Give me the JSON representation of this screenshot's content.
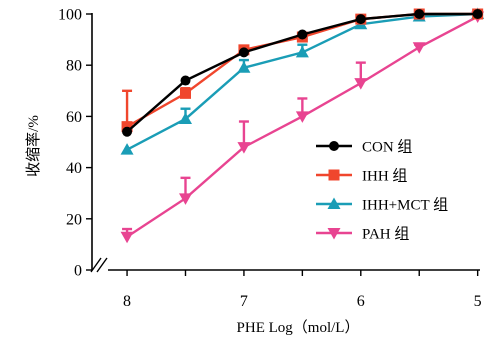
{
  "chart_data": {
    "type": "line",
    "xlabel": "PHE Log（mol/L）",
    "ylabel": "收缩率/%",
    "x": [
      8,
      7.5,
      7,
      6.5,
      6,
      5.5,
      5
    ],
    "x_ticks": [
      8,
      7,
      6,
      5
    ],
    "x_tick_labels": [
      "8",
      "7",
      "6",
      "5"
    ],
    "xlim": [
      8.3,
      4.98
    ],
    "ylim": [
      0,
      100
    ],
    "y_ticks": [
      0,
      20,
      40,
      60,
      80,
      100
    ],
    "y_tick_labels": [
      "0",
      "20",
      "40",
      "60",
      "80",
      "100"
    ],
    "y_axis_break": true,
    "grid": false,
    "legend_position": "right",
    "series": [
      {
        "name": "CON 组",
        "color": "#000000",
        "marker": "circle",
        "values": [
          54,
          74,
          85,
          92,
          98,
          100,
          100
        ],
        "errors": [
          null,
          null,
          null,
          null,
          null,
          null,
          null
        ]
      },
      {
        "name": "IHH 组",
        "color": "#f0462d",
        "marker": "square",
        "values": [
          56,
          69,
          86,
          91,
          98,
          100,
          100
        ],
        "errors": [
          14,
          2,
          null,
          null,
          null,
          null,
          null
        ]
      },
      {
        "name": "IHH+MCT 组",
        "color": "#1a9db6",
        "marker": "triangle-up",
        "values": [
          47,
          59,
          79,
          85,
          96,
          99,
          100
        ],
        "errors": [
          null,
          4,
          3,
          3,
          null,
          null,
          null
        ]
      },
      {
        "name": "PAH 组",
        "color": "#e84491",
        "marker": "triangle-down",
        "values": [
          13,
          28,
          48,
          60,
          73,
          87,
          99
        ],
        "errors": [
          3,
          8,
          10,
          7,
          8,
          1,
          null
        ]
      }
    ]
  }
}
